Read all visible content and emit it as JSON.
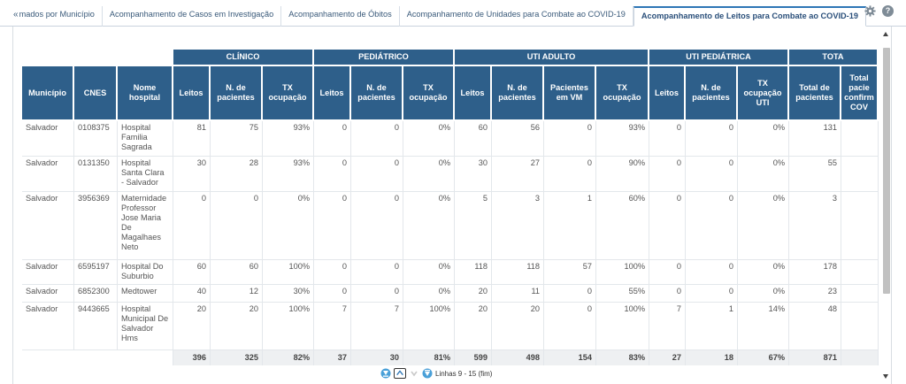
{
  "tabs": [
    {
      "label": "mados por Município",
      "active": false
    },
    {
      "label": "Acompanhamento de Casos em Investigação",
      "active": false
    },
    {
      "label": "Acompanhamento de Óbitos",
      "active": false
    },
    {
      "label": "Acompanhamento de Unidades para Combate ao COVID-19",
      "active": false
    },
    {
      "label": "Acompanhamento de Leitos para Combate ao COVID-19",
      "active": true
    }
  ],
  "tab_scroll_glyph": "«",
  "help_glyph": "?",
  "table": {
    "groups": [
      "CLÍNICO",
      "PEDIÁTRICO",
      "UTI ADULTO",
      "UTI PEDIÁTRICA",
      "TOTA"
    ],
    "headers": [
      "Município",
      "CNES",
      "Nome hospital",
      "Leitos",
      "N. de pacientes",
      "TX ocupação",
      "Leitos",
      "N. de pacientes",
      "TX ocupação",
      "Leitos",
      "N. de pacientes",
      "Pacientes em VM",
      "TX ocupação",
      "Leitos",
      "N. de pacientes",
      "TX ocupação UTI",
      "Total de pacientes",
      "Total pacie confirm COV"
    ],
    "rows": [
      [
        "Salvador",
        "0108375",
        "Hospital Familia Sagrada",
        "81",
        "75",
        "93%",
        "0",
        "0",
        "0%",
        "60",
        "56",
        "0",
        "93%",
        "0",
        "0",
        "0%",
        "131",
        ""
      ],
      [
        "Salvador",
        "0131350",
        "Hospital Santa Clara - Salvador",
        "30",
        "28",
        "93%",
        "0",
        "0",
        "0%",
        "30",
        "27",
        "0",
        "90%",
        "0",
        "0",
        "0%",
        "55",
        ""
      ],
      [
        "Salvador",
        "3956369",
        "Maternidade Professor Jose Maria De Magalhaes Neto",
        "0",
        "0",
        "0%",
        "0",
        "0",
        "0%",
        "5",
        "3",
        "1",
        "60%",
        "0",
        "0",
        "0%",
        "3",
        ""
      ],
      [
        "Salvador",
        "6595197",
        "Hospital Do Suburbio",
        "60",
        "60",
        "100%",
        "0",
        "0",
        "0%",
        "118",
        "118",
        "57",
        "100%",
        "0",
        "0",
        "0%",
        "178",
        ""
      ],
      [
        "Salvador",
        "6852300",
        "Medtower",
        "40",
        "12",
        "30%",
        "0",
        "0",
        "0%",
        "20",
        "11",
        "0",
        "55%",
        "0",
        "0",
        "0%",
        "23",
        ""
      ],
      [
        "Salvador",
        "9443665",
        "Hospital Municipal De Salvador Hms",
        "20",
        "20",
        "100%",
        "7",
        "7",
        "100%",
        "20",
        "20",
        "0",
        "100%",
        "7",
        "1",
        "14%",
        "48",
        ""
      ]
    ],
    "totals": [
      "396",
      "325",
      "82%",
      "37",
      "30",
      "81%",
      "599",
      "498",
      "154",
      "83%",
      "27",
      "18",
      "67%",
      "871",
      ""
    ]
  },
  "pager": {
    "label": "Linhas 9 - 15 (fim)"
  },
  "colors": {
    "header_bg": "#2e5f8a",
    "active_tab_border": "#2e76b6",
    "total_bg": "#eef0f2"
  }
}
